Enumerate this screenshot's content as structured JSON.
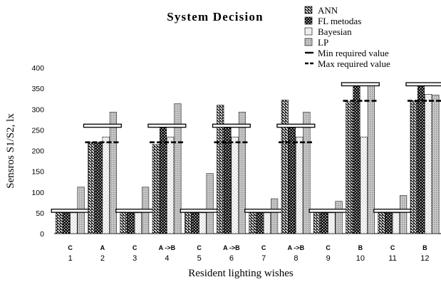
{
  "chart_data": {
    "type": "bar",
    "title": "System Decision",
    "xlabel": "Resident lighting  wishes",
    "ylabel": "Sensros S1/S2, lx",
    "ylim": [
      0,
      400
    ],
    "yticks": [
      0,
      50,
      100,
      150,
      200,
      250,
      300,
      350,
      400
    ],
    "grid": false,
    "legend_position": "top-right",
    "categories": [
      "1",
      "2",
      "3",
      "4",
      "5",
      "6",
      "7",
      "8",
      "9",
      "10",
      "11",
      "12"
    ],
    "category_tags": [
      "C",
      "A",
      "C",
      "A ->B",
      "C",
      "A ->B",
      "C",
      "A ->B",
      "C",
      "B",
      "C",
      "B"
    ],
    "series": [
      {
        "name": "ANN",
        "values": [
          50,
          220,
          50,
          215,
          50,
          310,
          50,
          322,
          50,
          318,
          50,
          320
        ]
      },
      {
        "name": "FL metodas",
        "values": [
          50,
          220,
          50,
          260,
          50,
          260,
          50,
          260,
          50,
          360,
          50,
          360
        ]
      },
      {
        "name": "Bayesian",
        "values": [
          50,
          233,
          50,
          233,
          50,
          233,
          50,
          233,
          50,
          233,
          50,
          336
        ]
      },
      {
        "name": "LP",
        "values": [
          112,
          293,
          112,
          313,
          145,
          293,
          84,
          293,
          78,
          360,
          92,
          334
        ]
      }
    ],
    "min_required": {
      "name": "Min required value",
      "values": [
        55,
        260,
        55,
        260,
        55,
        260,
        55,
        260,
        55,
        360,
        55,
        360
      ]
    },
    "max_required": {
      "name": "Max required value",
      "values": [
        null,
        220,
        null,
        220,
        null,
        220,
        null,
        220,
        null,
        320,
        null,
        320
      ]
    }
  }
}
